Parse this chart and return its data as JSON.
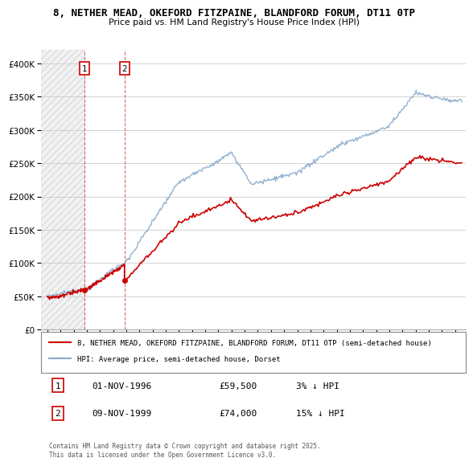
{
  "title": "8, NETHER MEAD, OKEFORD FITZPAINE, BLANDFORD FORUM, DT11 0TP",
  "subtitle": "Price paid vs. HM Land Registry's House Price Index (HPI)",
  "house_label": "8, NETHER MEAD, OKEFORD FITZPAINE, BLANDFORD FORUM, DT11 0TP (semi-detached house)",
  "hpi_label": "HPI: Average price, semi-detached house, Dorset",
  "house_color": "#cc0000",
  "hpi_color": "#88aacc",
  "footnote": "Contains HM Land Registry data © Crown copyright and database right 2025.\nThis data is licensed under the Open Government Licence v3.0.",
  "sales": [
    {
      "date": 1996.84,
      "price": 59500,
      "label": "1",
      "note": "01-NOV-1996",
      "amount": "£59,500",
      "pct": "3% ↓ HPI"
    },
    {
      "date": 1999.86,
      "price": 74000,
      "label": "2",
      "note": "09-NOV-1999",
      "amount": "£74,000",
      "pct": "15% ↓ HPI"
    }
  ],
  "ylim": [
    0,
    420000
  ],
  "yticks": [
    0,
    50000,
    100000,
    150000,
    200000,
    250000,
    300000,
    350000,
    400000
  ],
  "xlim": [
    1993.5,
    2025.8
  ],
  "hatch_start": 1993.5,
  "hatch_end": 1996.84,
  "background_color": "#ffffff",
  "grid_color": "#cccccc"
}
